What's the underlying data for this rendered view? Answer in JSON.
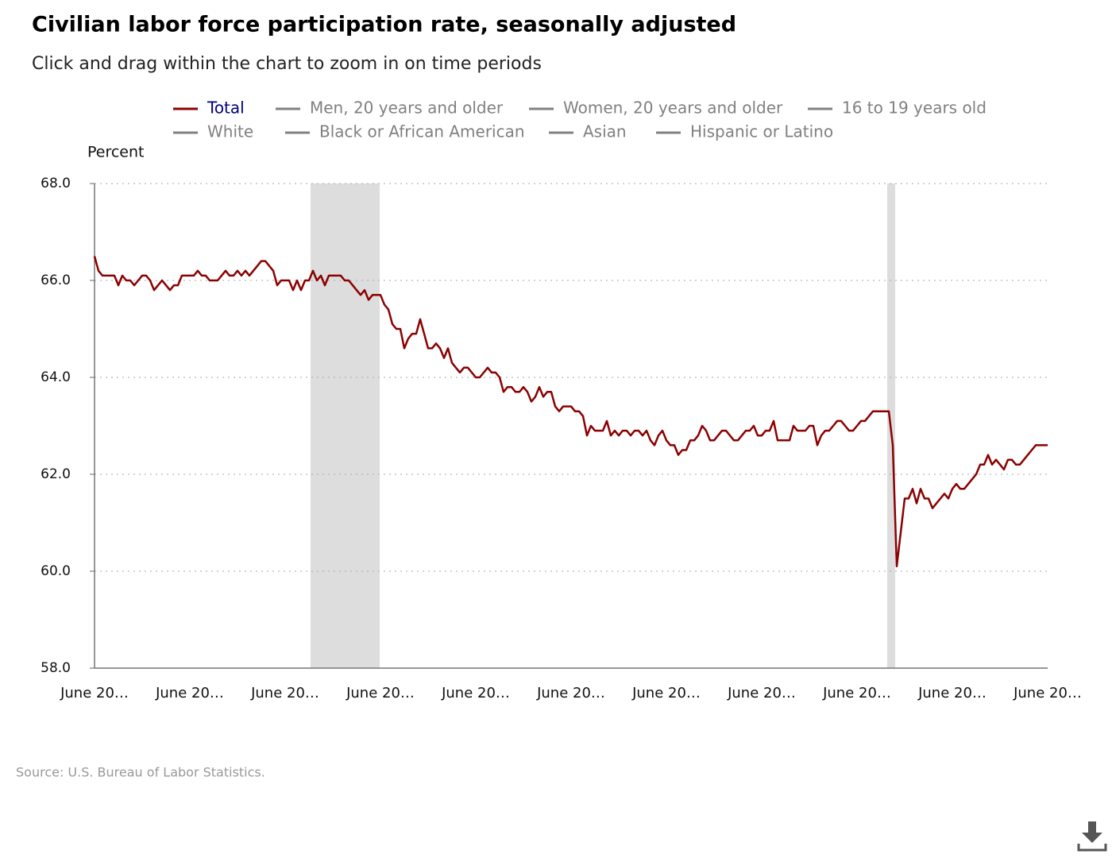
{
  "chart_data": {
    "type": "line",
    "title": "Civilian labor force participation rate, seasonally adjusted",
    "subtitle": "Click and drag within the chart to zoom in on time periods",
    "y_label": "Percent",
    "source": "Source: U.S. Bureau of Labor Statistics.",
    "grid": true,
    "categories": [
      "June 20…",
      null,
      null,
      null,
      null,
      null,
      null,
      null,
      null,
      null,
      null,
      null,
      null,
      null,
      null,
      null,
      null,
      null,
      null,
      null,
      null,
      null,
      null,
      null,
      "June 20…",
      null,
      null,
      null,
      null,
      null,
      null,
      null,
      null,
      null,
      null,
      null,
      null,
      null,
      null,
      null,
      null,
      null,
      null,
      null,
      null,
      null,
      null,
      null,
      "June 20…",
      null,
      null,
      null,
      null,
      null,
      null,
      null,
      null,
      null,
      null,
      null,
      null,
      null,
      null,
      null,
      null,
      null,
      null,
      null,
      null,
      null,
      null,
      null,
      "June 20…",
      null,
      null,
      null,
      null,
      null,
      null,
      null,
      null,
      null,
      null,
      null,
      null,
      null,
      null,
      null,
      null,
      null,
      null,
      null,
      null,
      null,
      null,
      null,
      "June 20…",
      null,
      null,
      null,
      null,
      null,
      null,
      null,
      null,
      null,
      null,
      null,
      null,
      null,
      null,
      null,
      null,
      null,
      null,
      null,
      null,
      null,
      null,
      null,
      "June 20…",
      null,
      null,
      null,
      null,
      null,
      null,
      null,
      null,
      null,
      null,
      null,
      null,
      null,
      null,
      null,
      null,
      null,
      null,
      null,
      null,
      null,
      null,
      null,
      "June 20…",
      null,
      null,
      null,
      null,
      null,
      null,
      null,
      null,
      null,
      null,
      null,
      null,
      null,
      null,
      null,
      null,
      null,
      null,
      null,
      null,
      null,
      null,
      null,
      "June 20…",
      null,
      null,
      null,
      null,
      null,
      null,
      null,
      null,
      null,
      null,
      null,
      null,
      null,
      null,
      null,
      null,
      null,
      null,
      null,
      null,
      null,
      null,
      null,
      "June 20…",
      null,
      null,
      null,
      null,
      null,
      null,
      null,
      null,
      null,
      null,
      null,
      null,
      null,
      null,
      null,
      null,
      null,
      null,
      null,
      null,
      null,
      null,
      null,
      "June 20…",
      null,
      null,
      null,
      null,
      null,
      null,
      null,
      null,
      null,
      null,
      null,
      null,
      null,
      null,
      null,
      null,
      null,
      null,
      null,
      null,
      null,
      null,
      null,
      "June 20…"
    ],
    "series": [
      {
        "name": "Total",
        "color": "#8b0000",
        "label_color": "#000080",
        "visible": true,
        "values": [
          66.5,
          66.2,
          66.1,
          66.1,
          66.1,
          66.1,
          65.9,
          66.1,
          66.0,
          66.0,
          65.9,
          66.0,
          66.1,
          66.1,
          66.0,
          65.8,
          65.9,
          66.0,
          65.9,
          65.8,
          65.9,
          65.9,
          66.1,
          66.1,
          66.1,
          66.1,
          66.2,
          66.1,
          66.1,
          66.0,
          66.0,
          66.0,
          66.1,
          66.2,
          66.1,
          66.1,
          66.2,
          66.1,
          66.2,
          66.1,
          66.2,
          66.3,
          66.4,
          66.4,
          66.3,
          66.2,
          65.9,
          66.0,
          66.0,
          66.0,
          65.8,
          66.0,
          65.8,
          66.0,
          66.0,
          66.2,
          66.0,
          66.1,
          65.9,
          66.1,
          66.1,
          66.1,
          66.1,
          66.0,
          66.0,
          65.9,
          65.8,
          65.7,
          65.8,
          65.6,
          65.7,
          65.7,
          65.7,
          65.5,
          65.4,
          65.1,
          65.0,
          65.0,
          64.6,
          64.8,
          64.9,
          64.9,
          65.2,
          64.9,
          64.6,
          64.6,
          64.7,
          64.6,
          64.4,
          64.6,
          64.3,
          64.2,
          64.1,
          64.2,
          64.2,
          64.1,
          64.0,
          64.0,
          64.1,
          64.2,
          64.1,
          64.1,
          64.0,
          63.7,
          63.8,
          63.8,
          63.7,
          63.7,
          63.8,
          63.7,
          63.5,
          63.6,
          63.8,
          63.6,
          63.7,
          63.7,
          63.4,
          63.3,
          63.4,
          63.4,
          63.4,
          63.3,
          63.3,
          63.2,
          62.8,
          63.0,
          62.9,
          62.9,
          62.9,
          63.1,
          62.8,
          62.9,
          62.8,
          62.9,
          62.9,
          62.8,
          62.9,
          62.9,
          62.8,
          62.9,
          62.7,
          62.6,
          62.8,
          62.9,
          62.7,
          62.6,
          62.6,
          62.4,
          62.5,
          62.5,
          62.7,
          62.7,
          62.8,
          63.0,
          62.9,
          62.7,
          62.7,
          62.8,
          62.9,
          62.9,
          62.8,
          62.7,
          62.7,
          62.8,
          62.9,
          62.9,
          63.0,
          62.8,
          62.8,
          62.9,
          62.9,
          63.1,
          62.7,
          62.7,
          62.7,
          62.7,
          63.0,
          62.9,
          62.9,
          62.9,
          63.0,
          63.0,
          62.6,
          62.8,
          62.9,
          62.9,
          63.0,
          63.1,
          63.1,
          63.0,
          62.9,
          62.9,
          63.0,
          63.1,
          63.1,
          63.2,
          63.3,
          63.3,
          63.3,
          63.3,
          63.3,
          62.6,
          60.1,
          60.8,
          61.5,
          61.5,
          61.7,
          61.4,
          61.7,
          61.5,
          61.5,
          61.3,
          61.4,
          61.5,
          61.6,
          61.5,
          61.7,
          61.8,
          61.7,
          61.7,
          61.8,
          61.9,
          62.0,
          62.2,
          62.2,
          62.4,
          62.2,
          62.3,
          62.2,
          62.1,
          62.3,
          62.3,
          62.2,
          62.2,
          62.3,
          62.4,
          62.5,
          62.6,
          62.6,
          62.6,
          62.6
        ]
      },
      {
        "name": "Men, 20 years and older",
        "color": "#808080",
        "label_color": "#808080",
        "visible": false
      },
      {
        "name": "Women, 20 years and older",
        "color": "#808080",
        "label_color": "#808080",
        "visible": false
      },
      {
        "name": "16 to 19 years old",
        "color": "#808080",
        "label_color": "#808080",
        "visible": false
      },
      {
        "name": "White",
        "color": "#808080",
        "label_color": "#808080",
        "visible": false
      },
      {
        "name": "Black or African American",
        "color": "#808080",
        "label_color": "#808080",
        "visible": false
      },
      {
        "name": "Asian",
        "color": "#808080",
        "label_color": "#808080",
        "visible": false
      },
      {
        "name": "Hispanic or Latino",
        "color": "#808080",
        "label_color": "#808080",
        "visible": false
      }
    ],
    "shaded_ranges": [
      [
        54.4,
        71.8
      ],
      [
        199.6,
        201.6
      ]
    ],
    "shade_color": "#dddddd",
    "ylim": [
      58,
      68
    ],
    "yticks": [
      {
        "value": 58,
        "label": "58.0"
      },
      {
        "value": 60,
        "label": "60.0"
      },
      {
        "value": 62,
        "label": "62.0"
      },
      {
        "value": 64,
        "label": "64.0"
      },
      {
        "value": 66,
        "label": "66.0"
      },
      {
        "value": 68,
        "label": "68.0"
      }
    ]
  }
}
